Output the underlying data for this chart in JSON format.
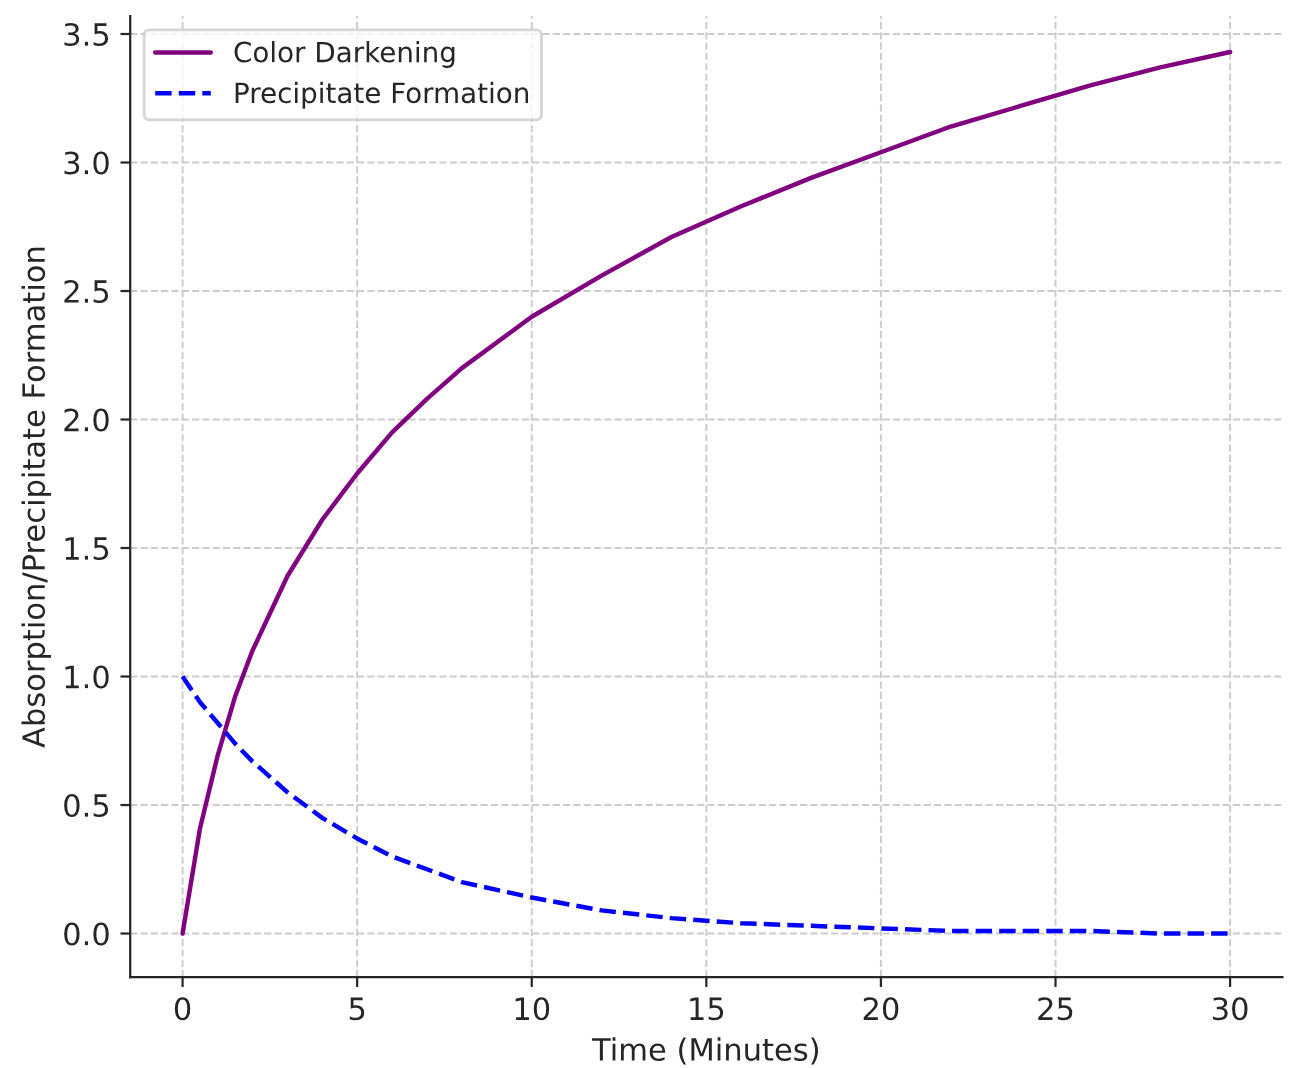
{
  "chart_data": {
    "type": "line",
    "xlabel": "Time (Minutes)",
    "ylabel": "Absorption/Precipitate Formation",
    "series": [
      {
        "name": "Color Darkening",
        "color": "#800080",
        "line_style": "solid",
        "x": [
          0,
          0.5,
          1,
          1.5,
          2,
          3,
          4,
          5,
          6,
          7,
          8,
          10,
          12,
          14,
          16,
          18,
          20,
          22,
          24,
          26,
          28,
          30
        ],
        "values": [
          0,
          0.41,
          0.69,
          0.92,
          1.1,
          1.39,
          1.61,
          1.79,
          1.95,
          2.08,
          2.2,
          2.4,
          2.56,
          2.71,
          2.83,
          2.94,
          3.04,
          3.14,
          3.22,
          3.3,
          3.37,
          3.43
        ]
      },
      {
        "name": "Precipitate Formation",
        "color": "#0000ff",
        "line_style": "dashed",
        "x": [
          0,
          0.5,
          1,
          1.5,
          2,
          3,
          4,
          5,
          6,
          7,
          8,
          10,
          12,
          14,
          16,
          18,
          20,
          22,
          24,
          26,
          28,
          30
        ],
        "values": [
          1,
          0.9,
          0.82,
          0.74,
          0.67,
          0.55,
          0.45,
          0.37,
          0.3,
          0.25,
          0.2,
          0.14,
          0.09,
          0.06,
          0.04,
          0.03,
          0.02,
          0.01,
          0.01,
          0.01,
          0.0,
          0.0
        ]
      }
    ],
    "xlim": [
      -1.5,
      31.5
    ],
    "xticks": [
      0,
      5,
      10,
      15,
      20,
      25,
      30
    ],
    "ylim": [
      -0.17,
      3.57
    ],
    "yticks": [
      {
        "value": 0,
        "label": "0.0"
      },
      0.5,
      {
        "value": 1,
        "label": "1.0"
      },
      1.5,
      {
        "value": 2,
        "label": "2.0"
      },
      2.5,
      {
        "value": 3,
        "label": "3.0"
      },
      3.5
    ],
    "grid": true,
    "legend": "top left",
    "marker": "none"
  }
}
